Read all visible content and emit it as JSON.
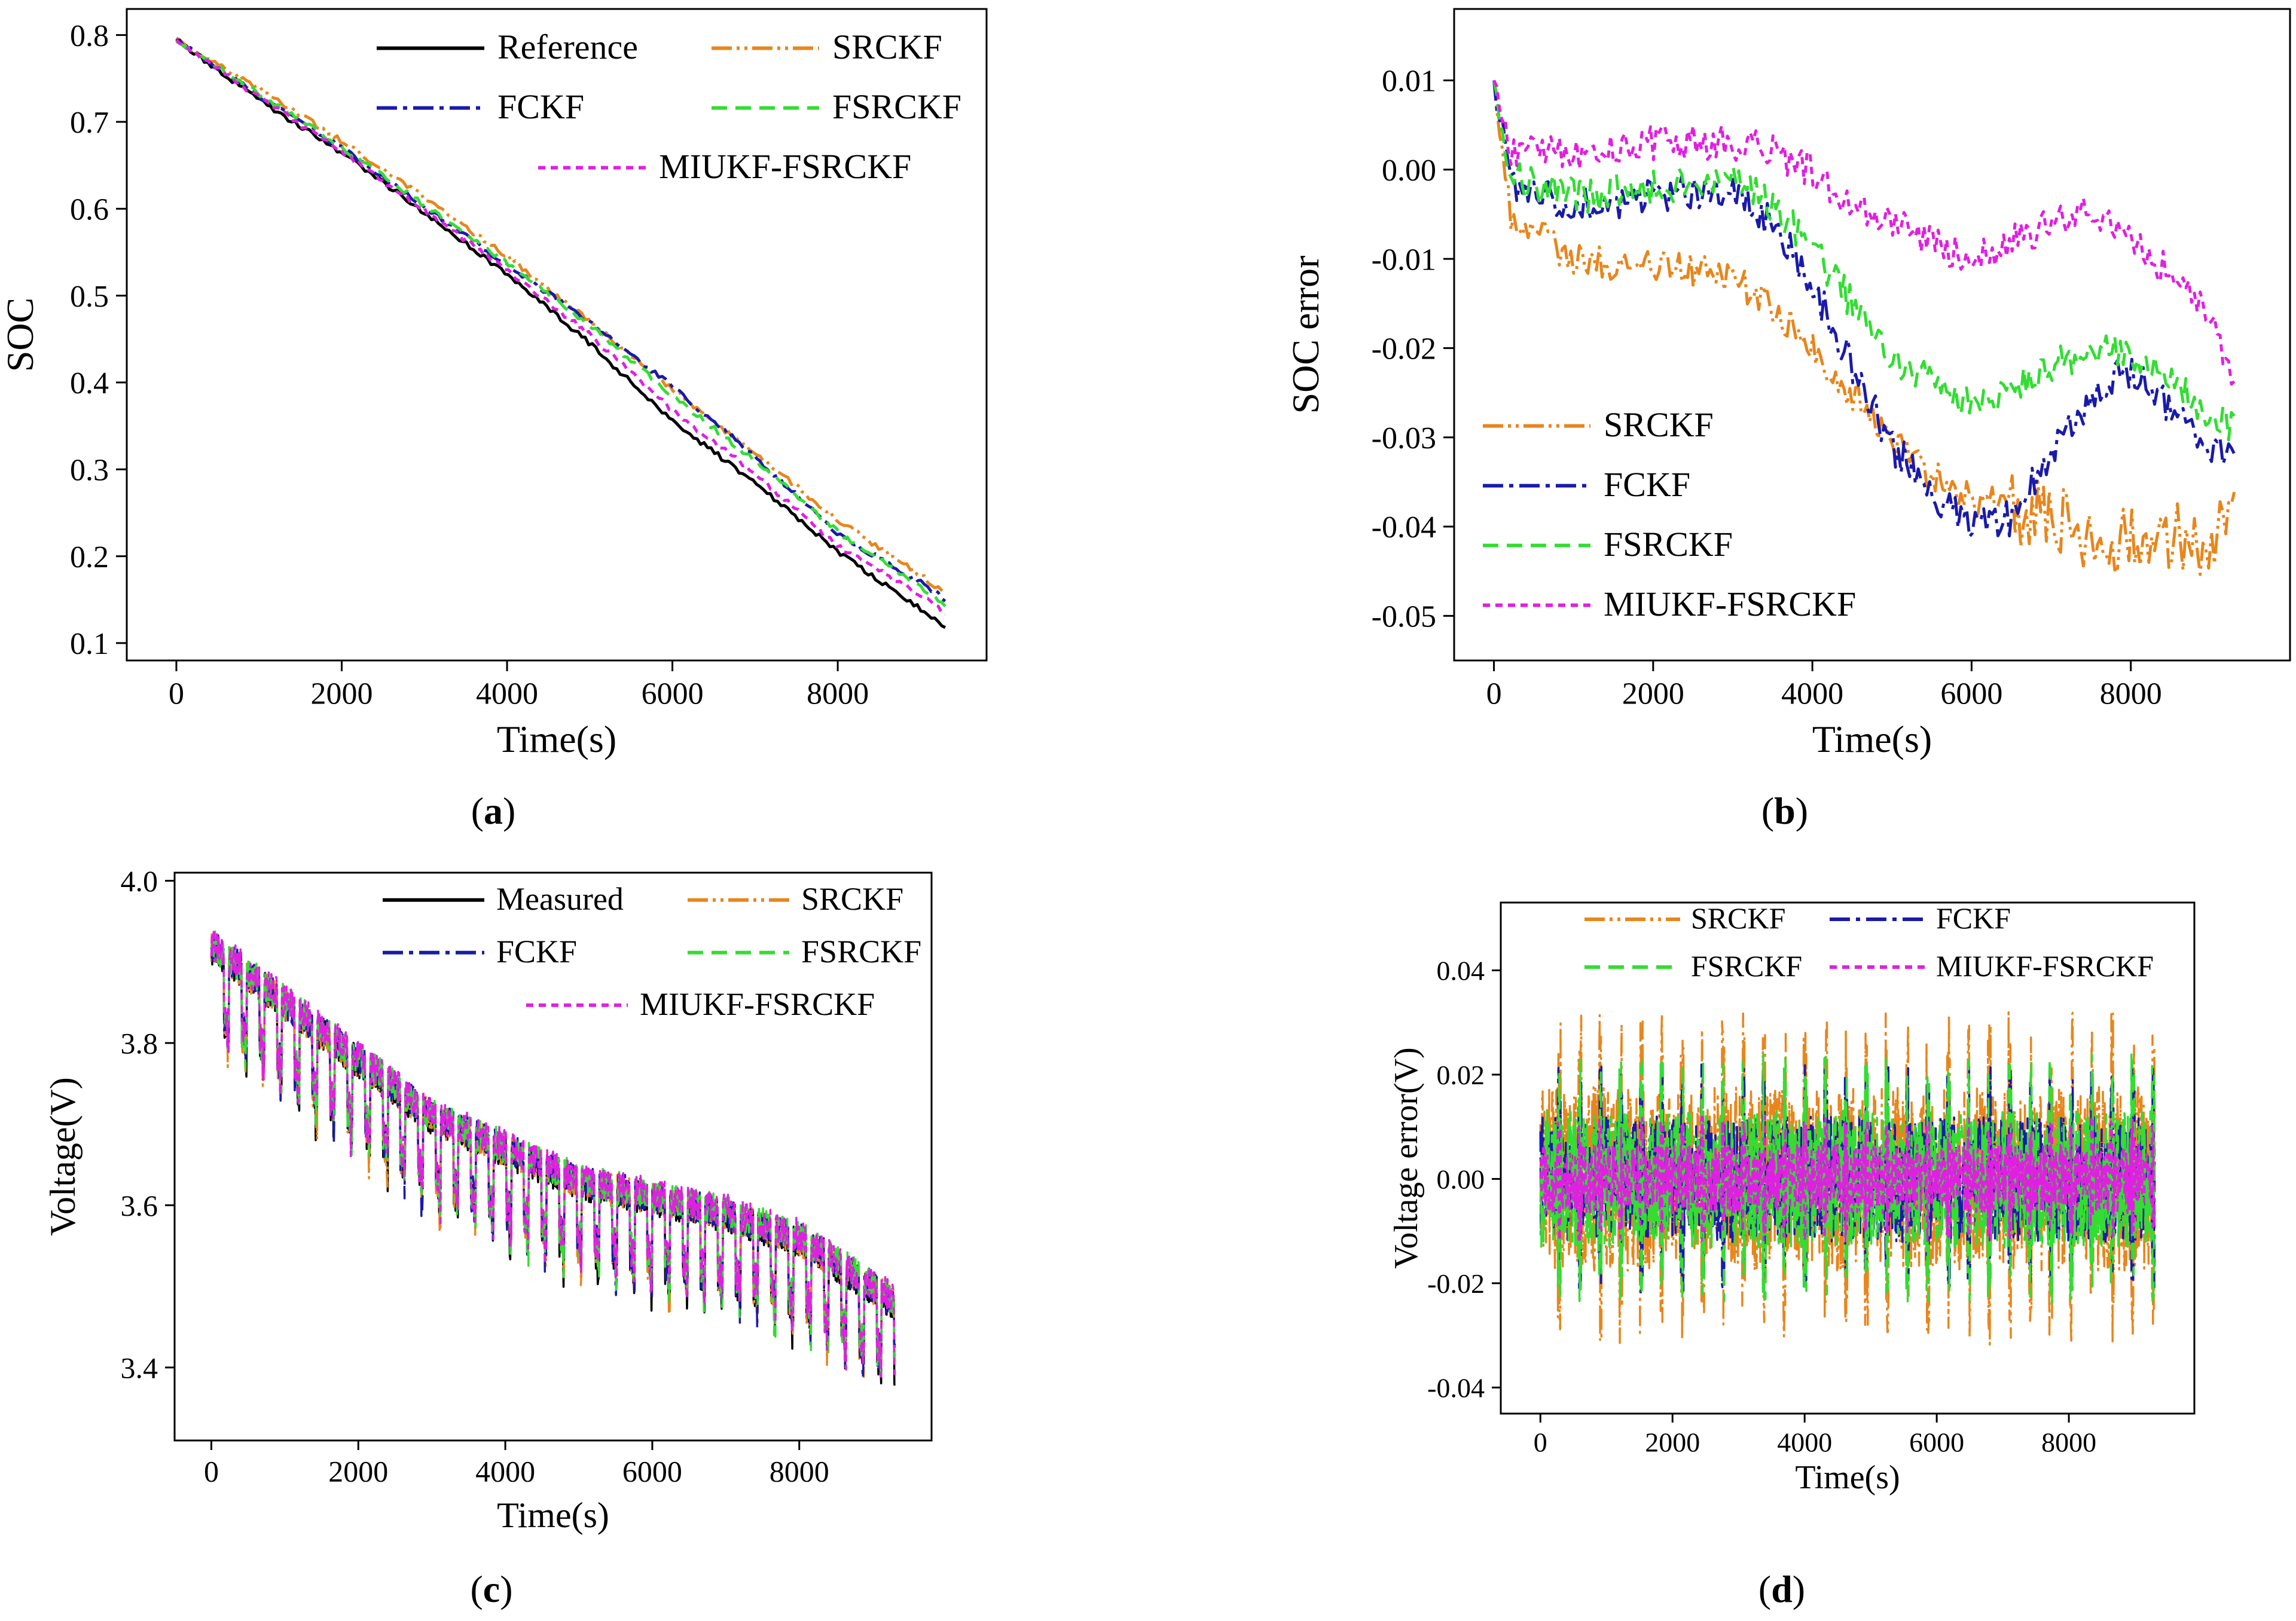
{
  "colors": {
    "Reference": "#000000",
    "Measured": "#000000",
    "SRCKF": "#E8861C",
    "FCKF": "#1A1AAA",
    "FSRCKF": "#33DD33",
    "MIUKF-FSRCKF": "#E020E0"
  },
  "chart_data": [
    {
      "id": "a",
      "type": "line",
      "panel_label": "(a)",
      "panel_letter": "a",
      "xlabel": "Time(s)",
      "ylabel": "SOC",
      "xlim": [
        -600,
        9800
      ],
      "ylim": [
        0.08,
        0.83
      ],
      "xticks": [
        0,
        2000,
        4000,
        6000,
        8000
      ],
      "xtick_labels": [
        "0",
        "2000",
        "4000",
        "6000",
        "8000"
      ],
      "yticks": [
        0.1,
        0.2,
        0.3,
        0.4,
        0.5,
        0.6,
        0.7,
        0.8
      ],
      "ytick_labels": [
        "0.1",
        "0.2",
        "0.3",
        "0.4",
        "0.5",
        "0.6",
        "0.7",
        "0.8"
      ],
      "legend_location": "top-right",
      "legend_columns": 2,
      "legend_order": [
        "Reference",
        "SRCKF",
        "FCKF",
        "FSRCKF",
        "MIUKF-FSRCKF"
      ],
      "x": [
        0,
        1000,
        2000,
        3000,
        4000,
        5000,
        6000,
        7000,
        8000,
        9000,
        9300
      ],
      "series": [
        {
          "name": "Reference",
          "style": "solid",
          "values": [
            0.795,
            0.725,
            0.665,
            0.595,
            0.525,
            0.445,
            0.355,
            0.285,
            0.205,
            0.14,
            0.12
          ]
        },
        {
          "name": "SRCKF",
          "style": "dashdotdot",
          "values": [
            0.795,
            0.738,
            0.678,
            0.613,
            0.545,
            0.47,
            0.392,
            0.318,
            0.242,
            0.178,
            0.158
          ]
        },
        {
          "name": "FCKF",
          "style": "dashdot",
          "values": [
            0.795,
            0.73,
            0.67,
            0.602,
            0.535,
            0.47,
            0.395,
            0.315,
            0.225,
            0.17,
            0.15
          ]
        },
        {
          "name": "FSRCKF",
          "style": "dash",
          "values": [
            0.795,
            0.733,
            0.671,
            0.604,
            0.538,
            0.466,
            0.385,
            0.31,
            0.228,
            0.165,
            0.145
          ]
        },
        {
          "name": "MIUKF-FSRCKF",
          "style": "shortdash",
          "values": [
            0.795,
            0.728,
            0.666,
            0.598,
            0.53,
            0.455,
            0.368,
            0.295,
            0.212,
            0.155,
            0.135
          ]
        }
      ]
    },
    {
      "id": "b",
      "type": "line",
      "panel_label": "(b)",
      "panel_letter": "b",
      "xlabel": "Time(s)",
      "ylabel": "SOC error",
      "xlim": [
        -500,
        10000
      ],
      "ylim": [
        -0.055,
        0.018
      ],
      "xticks": [
        0,
        2000,
        4000,
        6000,
        8000
      ],
      "xtick_labels": [
        "0",
        "2000",
        "4000",
        "6000",
        "8000"
      ],
      "yticks": [
        0.01,
        0.0,
        -0.01,
        -0.02,
        -0.03,
        -0.04,
        -0.05
      ],
      "ytick_labels": [
        "0.01",
        "0.00",
        "-0.01",
        "-0.02",
        "-0.03",
        "-0.04",
        "-0.05"
      ],
      "legend_location": "bottom-left",
      "legend_columns": 1,
      "legend_order": [
        "SRCKF",
        "FCKF",
        "FSRCKF",
        "MIUKF-FSRCKF"
      ],
      "x": [
        0,
        200,
        1000,
        2000,
        3000,
        3500,
        4000,
        4500,
        5000,
        5500,
        6000,
        6500,
        7000,
        7500,
        7900,
        8500,
        9000,
        9300
      ],
      "series": [
        {
          "name": "SRCKF",
          "style": "dashdotdot",
          "values": [
            0.01,
            -0.005,
            -0.01,
            -0.011,
            -0.012,
            -0.015,
            -0.02,
            -0.025,
            -0.03,
            -0.034,
            -0.037,
            -0.038,
            -0.039,
            -0.041,
            -0.042,
            -0.041,
            -0.042,
            -0.037
          ]
        },
        {
          "name": "FCKF",
          "style": "dashdot",
          "values": [
            0.01,
            -0.002,
            -0.004,
            -0.003,
            -0.002,
            -0.006,
            -0.013,
            -0.022,
            -0.031,
            -0.036,
            -0.04,
            -0.039,
            -0.032,
            -0.026,
            -0.022,
            -0.027,
            -0.031,
            -0.032
          ]
        },
        {
          "name": "FSRCKF",
          "style": "dash",
          "values": [
            0.01,
            -0.001,
            -0.003,
            -0.002,
            -0.001,
            -0.004,
            -0.009,
            -0.015,
            -0.021,
            -0.024,
            -0.026,
            -0.025,
            -0.022,
            -0.02,
            -0.02,
            -0.024,
            -0.027,
            -0.029
          ]
        },
        {
          "name": "MIUKF-FSRCKF",
          "style": "shortdash",
          "values": [
            0.01,
            0.002,
            0.002,
            0.003,
            0.003,
            0.002,
            0.0,
            -0.004,
            -0.006,
            -0.008,
            -0.01,
            -0.008,
            -0.006,
            -0.005,
            -0.006,
            -0.012,
            -0.017,
            -0.023
          ]
        }
      ]
    },
    {
      "id": "c",
      "type": "line",
      "panel_label": "(c)",
      "panel_letter": "c",
      "xlabel": "Time(s)",
      "ylabel": "Voltage(V)",
      "xlim": [
        -500,
        9800
      ],
      "ylim": [
        3.31,
        4.01
      ],
      "xticks": [
        0,
        2000,
        4000,
        6000,
        8000
      ],
      "xtick_labels": [
        "0",
        "2000",
        "4000",
        "6000",
        "8000"
      ],
      "yticks": [
        3.4,
        3.6,
        3.8,
        4.0
      ],
      "ytick_labels": [
        "3.4",
        "3.6",
        "3.8",
        "4.0"
      ],
      "legend_location": "top-right",
      "legend_columns": 2,
      "legend_order": [
        "Measured",
        "SRCKF",
        "FCKF",
        "FSRCKF",
        "MIUKF-FSRCKF"
      ],
      "x": [
        0,
        1000,
        2000,
        3000,
        4000,
        5000,
        6000,
        7000,
        8000,
        9000,
        9300
      ],
      "series": [
        {
          "name": "Measured",
          "style": "solid",
          "values": [
            3.89,
            3.82,
            3.75,
            3.68,
            3.64,
            3.6,
            3.58,
            3.56,
            3.53,
            3.47,
            3.45
          ]
        },
        {
          "name": "SRCKF",
          "style": "dashdotdot",
          "values": [
            3.89,
            3.82,
            3.75,
            3.68,
            3.64,
            3.6,
            3.58,
            3.56,
            3.53,
            3.47,
            3.45
          ]
        },
        {
          "name": "FCKF",
          "style": "dashdot",
          "values": [
            3.89,
            3.82,
            3.75,
            3.68,
            3.64,
            3.6,
            3.58,
            3.56,
            3.53,
            3.47,
            3.45
          ]
        },
        {
          "name": "FSRCKF",
          "style": "dash",
          "values": [
            3.89,
            3.82,
            3.75,
            3.68,
            3.64,
            3.6,
            3.58,
            3.56,
            3.53,
            3.47,
            3.45
          ]
        },
        {
          "name": "MIUKF-FSRCKF",
          "style": "shortdash",
          "values": [
            3.89,
            3.82,
            3.75,
            3.68,
            3.64,
            3.6,
            3.58,
            3.56,
            3.53,
            3.47,
            3.45
          ]
        }
      ]
    },
    {
      "id": "d",
      "type": "line",
      "panel_label": "(d)",
      "panel_letter": "d",
      "xlabel": "Time(s)",
      "ylabel": "Voltage error(V)",
      "xlim": [
        -600,
        9900
      ],
      "ylim": [
        -0.045,
        0.053
      ],
      "xticks": [
        0,
        2000,
        4000,
        6000,
        8000
      ],
      "xtick_labels": [
        "0",
        "2000",
        "4000",
        "6000",
        "8000"
      ],
      "yticks": [
        0.04,
        0.02,
        0.0,
        -0.02,
        -0.04
      ],
      "ytick_labels": [
        "0.04",
        "0.02",
        "0.00",
        "-0.02",
        "-0.04"
      ],
      "legend_location": "top",
      "legend_columns": 2,
      "legend_order": [
        "SRCKF",
        "FCKF",
        "FSRCKF",
        "MIUKF-FSRCKF"
      ],
      "x": [
        0,
        9300
      ],
      "series": [
        {
          "name": "SRCKF",
          "style": "dashdotdot",
          "values": [
            0.0,
            0.0
          ],
          "amplitude": 0.032
        },
        {
          "name": "FCKF",
          "style": "dashdot",
          "values": [
            0.0,
            0.0
          ],
          "amplitude": 0.022
        },
        {
          "name": "FSRCKF",
          "style": "dash",
          "values": [
            0.0,
            0.0
          ],
          "amplitude": 0.024
        },
        {
          "name": "MIUKF-FSRCKF",
          "style": "shortdash",
          "values": [
            0.0,
            0.0
          ],
          "amplitude": 0.012
        }
      ]
    }
  ]
}
